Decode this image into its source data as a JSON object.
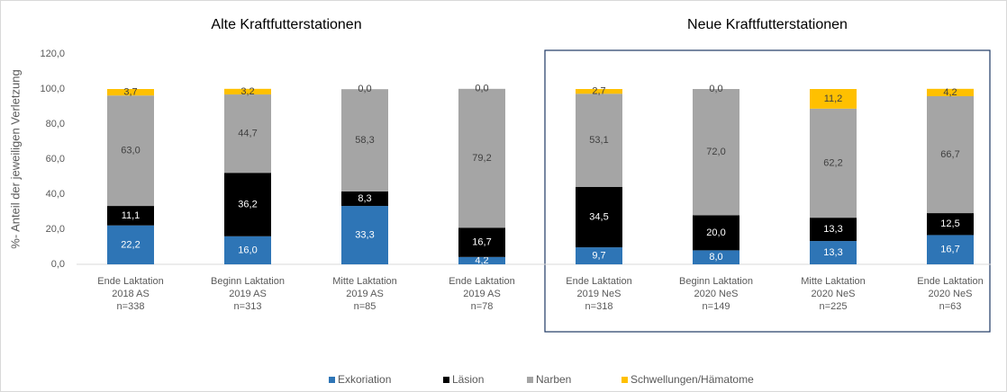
{
  "chart_data": {
    "type": "stacked_bar",
    "annotations": [
      "Alte Kraftfutterstationen",
      "Neue Kraftfutterstationen"
    ],
    "y_label": "%- Anteil der jeweiligen Verletzung",
    "categories": [
      [
        "Ende Laktation",
        "2018 AS",
        "n=338"
      ],
      [
        "Beginn Laktation",
        "2019 AS",
        "n=313"
      ],
      [
        "Mitte Laktation",
        "2019 AS",
        "n=85"
      ],
      [
        "Ende Laktation",
        "2019  AS",
        "n=78"
      ],
      [
        "Ende Laktation",
        "2019  NeS",
        "n=318"
      ],
      [
        "Beginn Laktation",
        "2020  NeS",
        "n=149"
      ],
      [
        "Mitte Laktation",
        "2020  NeS",
        "n=225"
      ],
      [
        "Ende Laktation",
        "2020  NeS",
        "n=63"
      ]
    ],
    "series": [
      {
        "name": "Exkoriation",
        "color": "#2e75b6",
        "label_color": "#ffffff",
        "values": [
          22.2,
          16.0,
          33.3,
          4.2,
          9.7,
          8.0,
          13.3,
          16.7
        ],
        "value_labels": [
          "22,2",
          "16,0",
          "33,3",
          "4,2",
          "9,7",
          "8,0",
          "13,3",
          "16,7"
        ]
      },
      {
        "name": "Läsion",
        "color": "#000000",
        "label_color": "#ffffff",
        "values": [
          11.1,
          36.2,
          8.3,
          16.7,
          34.5,
          20.0,
          13.3,
          12.5
        ],
        "value_labels": [
          "11,1",
          "36,2",
          "8,3",
          "16,7",
          "34,5",
          "20,0",
          "13,3",
          "12,5"
        ]
      },
      {
        "name": "Narben",
        "color": "#a5a5a5",
        "label_color": "#404040",
        "values": [
          63.0,
          44.7,
          58.3,
          79.2,
          53.1,
          72.0,
          62.2,
          66.7
        ],
        "value_labels": [
          "63,0",
          "44,7",
          "58,3",
          "79,2",
          "53,1",
          "72,0",
          "62,2",
          "66,7"
        ]
      },
      {
        "name": "Schwellungen/Hämatome",
        "color": "#ffc000",
        "label_color": "#404040",
        "values": [
          3.7,
          3.2,
          0.0,
          0.0,
          2.7,
          0.0,
          11.2,
          4.2
        ],
        "value_labels": [
          "3,7",
          "3,2",
          "0,0",
          "0,0",
          "2,7",
          "0,0",
          "11,2",
          "4,2"
        ]
      }
    ],
    "ylim": [
      0,
      120
    ],
    "yticks": [
      {
        "value": 0,
        "label": "0,0"
      },
      {
        "value": 20,
        "label": "20,0"
      },
      {
        "value": 40,
        "label": "40,0"
      },
      {
        "value": 60,
        "label": "60,0"
      },
      {
        "value": 80,
        "label": "80,0"
      },
      {
        "value": 100,
        "label": "100,0"
      },
      {
        "value": 120,
        "label": "120,0"
      }
    ],
    "grid": false,
    "legend": "bottom"
  }
}
